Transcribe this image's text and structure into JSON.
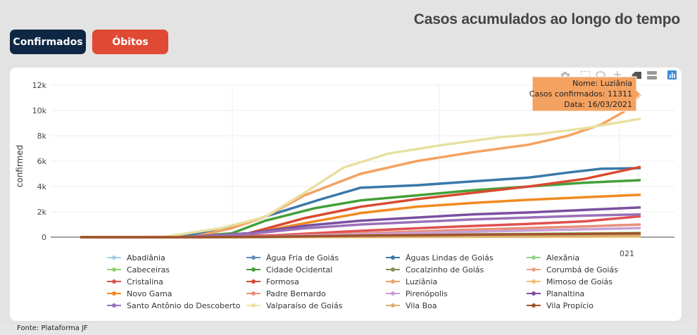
{
  "header": {
    "title": "Casos acumulados ao longo do tempo"
  },
  "buttons": {
    "confirmed": "Confirmados",
    "deaths": "Óbitos"
  },
  "footer": {
    "source": "Fonte: Plataforma JF"
  },
  "toolbar": {
    "icons": [
      "camera-icon",
      "box-select-icon",
      "lasso-icon",
      "pan-icon",
      "compare-hover-icon",
      "closest-hover-icon",
      "plotly-logo-icon"
    ]
  },
  "tooltip": {
    "line1": "Nome: Luziânia",
    "line2": "Casos confirmados: 11311",
    "line3": "Data: 16/03/2021",
    "color": "#f4a261"
  },
  "chart_data": {
    "type": "line",
    "ylabel": "confirmed",
    "yticks": [
      "0",
      "2k",
      "4k",
      "6k",
      "8k",
      "10k",
      "12k"
    ],
    "ylim": [
      0,
      12000
    ],
    "xtick_visible": "021",
    "grid": true,
    "legend_placement": "bottom",
    "series": [
      {
        "name": "Abadiânia",
        "color": "#a6cee3",
        "points": [
          [
            0.0,
            0
          ],
          [
            0.2,
            2
          ],
          [
            0.35,
            20
          ],
          [
            0.5,
            60
          ],
          [
            0.7,
            110
          ],
          [
            0.9,
            160
          ],
          [
            1.0,
            190
          ]
        ]
      },
      {
        "name": "Água Fria de Goiás",
        "color": "#5b8db8",
        "points": [
          [
            0.0,
            0
          ],
          [
            0.2,
            1
          ],
          [
            0.35,
            10
          ],
          [
            0.5,
            30
          ],
          [
            0.7,
            55
          ],
          [
            0.9,
            80
          ],
          [
            1.0,
            95
          ]
        ]
      },
      {
        "name": "Águas Lindas de Goiás",
        "color": "#3a78a8",
        "points": [
          [
            0.0,
            0
          ],
          [
            0.15,
            20
          ],
          [
            0.25,
            500
          ],
          [
            0.35,
            1900
          ],
          [
            0.43,
            3000
          ],
          [
            0.5,
            3900
          ],
          [
            0.6,
            4100
          ],
          [
            0.7,
            4400
          ],
          [
            0.8,
            4700
          ],
          [
            0.87,
            5100
          ],
          [
            0.93,
            5400
          ],
          [
            1.0,
            5450
          ]
        ]
      },
      {
        "name": "Alexânia",
        "color": "#98d08c",
        "points": [
          [
            0.0,
            0
          ],
          [
            0.2,
            3
          ],
          [
            0.35,
            40
          ],
          [
            0.5,
            120
          ],
          [
            0.7,
            220
          ],
          [
            0.9,
            300
          ],
          [
            1.0,
            340
          ]
        ]
      },
      {
        "name": "Cabeceiras",
        "color": "#90d070",
        "points": [
          [
            0.0,
            0
          ],
          [
            0.2,
            1
          ],
          [
            0.35,
            8
          ],
          [
            0.5,
            25
          ],
          [
            0.7,
            45
          ],
          [
            0.9,
            65
          ],
          [
            1.0,
            75
          ]
        ]
      },
      {
        "name": "Cidade Ocidental",
        "color": "#43a038",
        "points": [
          [
            0.0,
            0
          ],
          [
            0.18,
            10
          ],
          [
            0.27,
            300
          ],
          [
            0.33,
            1300
          ],
          [
            0.42,
            2300
          ],
          [
            0.5,
            2900
          ],
          [
            0.6,
            3300
          ],
          [
            0.7,
            3700
          ],
          [
            0.8,
            4000
          ],
          [
            0.9,
            4300
          ],
          [
            1.0,
            4500
          ]
        ]
      },
      {
        "name": "Cocalzinho de Goiás",
        "color": "#8a8a5a",
        "points": [
          [
            0.0,
            0
          ],
          [
            0.2,
            2
          ],
          [
            0.35,
            30
          ],
          [
            0.5,
            90
          ],
          [
            0.7,
            150
          ],
          [
            0.9,
            210
          ],
          [
            1.0,
            240
          ]
        ]
      },
      {
        "name": "Corumbá de Goiás",
        "color": "#f0a090",
        "points": [
          [
            0.0,
            0
          ],
          [
            0.2,
            2
          ],
          [
            0.35,
            30
          ],
          [
            0.5,
            80
          ],
          [
            0.7,
            140
          ],
          [
            0.9,
            190
          ],
          [
            1.0,
            220
          ]
        ]
      },
      {
        "name": "Cristalina",
        "color": "#e05050",
        "points": [
          [
            0.0,
            0
          ],
          [
            0.2,
            5
          ],
          [
            0.35,
            150
          ],
          [
            0.5,
            500
          ],
          [
            0.65,
            800
          ],
          [
            0.8,
            1050
          ],
          [
            0.9,
            1250
          ],
          [
            1.0,
            1650
          ]
        ]
      },
      {
        "name": "Formosa",
        "color": "#d84a30",
        "points": [
          [
            0.0,
            0
          ],
          [
            0.2,
            8
          ],
          [
            0.3,
            300
          ],
          [
            0.4,
            1500
          ],
          [
            0.5,
            2400
          ],
          [
            0.6,
            3000
          ],
          [
            0.7,
            3500
          ],
          [
            0.8,
            4000
          ],
          [
            0.9,
            4600
          ],
          [
            1.0,
            5550
          ]
        ]
      },
      {
        "name": "Luziânia",
        "color": "#f4a261",
        "points": [
          [
            0.0,
            0
          ],
          [
            0.2,
            30
          ],
          [
            0.27,
            700
          ],
          [
            0.33,
            1600
          ],
          [
            0.4,
            3300
          ],
          [
            0.5,
            5000
          ],
          [
            0.6,
            6000
          ],
          [
            0.7,
            6700
          ],
          [
            0.8,
            7300
          ],
          [
            0.87,
            8000
          ],
          [
            0.93,
            8900
          ],
          [
            0.97,
            9900
          ],
          [
            1.0,
            11311
          ]
        ]
      },
      {
        "name": "Mimoso de Goiás",
        "color": "#f4c070",
        "points": [
          [
            0.0,
            0
          ],
          [
            0.2,
            1
          ],
          [
            0.35,
            5
          ],
          [
            0.5,
            15
          ],
          [
            0.7,
            30
          ],
          [
            0.9,
            45
          ],
          [
            1.0,
            55
          ]
        ]
      },
      {
        "name": "Novo Gama",
        "color": "#f08a20",
        "points": [
          [
            0.0,
            0
          ],
          [
            0.2,
            8
          ],
          [
            0.3,
            250
          ],
          [
            0.4,
            1100
          ],
          [
            0.5,
            1900
          ],
          [
            0.6,
            2400
          ],
          [
            0.7,
            2700
          ],
          [
            0.8,
            2950
          ],
          [
            0.9,
            3150
          ],
          [
            1.0,
            3350
          ]
        ]
      },
      {
        "name": "Padre Bernardo",
        "color": "#e8907a",
        "points": [
          [
            0.0,
            0
          ],
          [
            0.2,
            3
          ],
          [
            0.35,
            80
          ],
          [
            0.5,
            300
          ],
          [
            0.7,
            600
          ],
          [
            0.9,
            850
          ],
          [
            1.0,
            1000
          ]
        ]
      },
      {
        "name": "Pirenópolis",
        "color": "#c8a0d8",
        "points": [
          [
            0.0,
            0
          ],
          [
            0.2,
            3
          ],
          [
            0.35,
            60
          ],
          [
            0.5,
            220
          ],
          [
            0.7,
            430
          ],
          [
            0.9,
            620
          ],
          [
            1.0,
            720
          ]
        ]
      },
      {
        "name": "Planaltina",
        "color": "#7a4fa0",
        "points": [
          [
            0.0,
            0
          ],
          [
            0.18,
            10
          ],
          [
            0.3,
            300
          ],
          [
            0.4,
            900
          ],
          [
            0.5,
            1300
          ],
          [
            0.6,
            1550
          ],
          [
            0.7,
            1800
          ],
          [
            0.8,
            1950
          ],
          [
            0.9,
            2150
          ],
          [
            1.0,
            2350
          ]
        ]
      },
      {
        "name": "Santo Antônio do Descoberto",
        "color": "#9a70b8",
        "points": [
          [
            0.0,
            0
          ],
          [
            0.18,
            8
          ],
          [
            0.3,
            250
          ],
          [
            0.4,
            700
          ],
          [
            0.5,
            1000
          ],
          [
            0.6,
            1200
          ],
          [
            0.7,
            1400
          ],
          [
            0.8,
            1550
          ],
          [
            0.9,
            1700
          ],
          [
            1.0,
            1800
          ]
        ]
      },
      {
        "name": "Valparaíso de Goiás",
        "color": "#e8e0a0",
        "points": [
          [
            0.0,
            0
          ],
          [
            0.15,
            30
          ],
          [
            0.25,
            700
          ],
          [
            0.33,
            1600
          ],
          [
            0.4,
            3500
          ],
          [
            0.47,
            5500
          ],
          [
            0.55,
            6600
          ],
          [
            0.65,
            7300
          ],
          [
            0.75,
            7900
          ],
          [
            0.82,
            8150
          ],
          [
            0.9,
            8600
          ],
          [
            1.0,
            9350
          ]
        ]
      },
      {
        "name": "Vila Boa",
        "color": "#d8b070",
        "points": [
          [
            0.0,
            0
          ],
          [
            0.2,
            1
          ],
          [
            0.35,
            10
          ],
          [
            0.5,
            35
          ],
          [
            0.7,
            70
          ],
          [
            0.9,
            100
          ],
          [
            1.0,
            120
          ]
        ]
      },
      {
        "name": "Vila Propício",
        "color": "#a0522d",
        "points": [
          [
            0.0,
            0
          ],
          [
            0.2,
            2
          ],
          [
            0.35,
            40
          ],
          [
            0.5,
            120
          ],
          [
            0.7,
            200
          ],
          [
            0.9,
            260
          ],
          [
            1.0,
            300
          ]
        ]
      }
    ]
  }
}
